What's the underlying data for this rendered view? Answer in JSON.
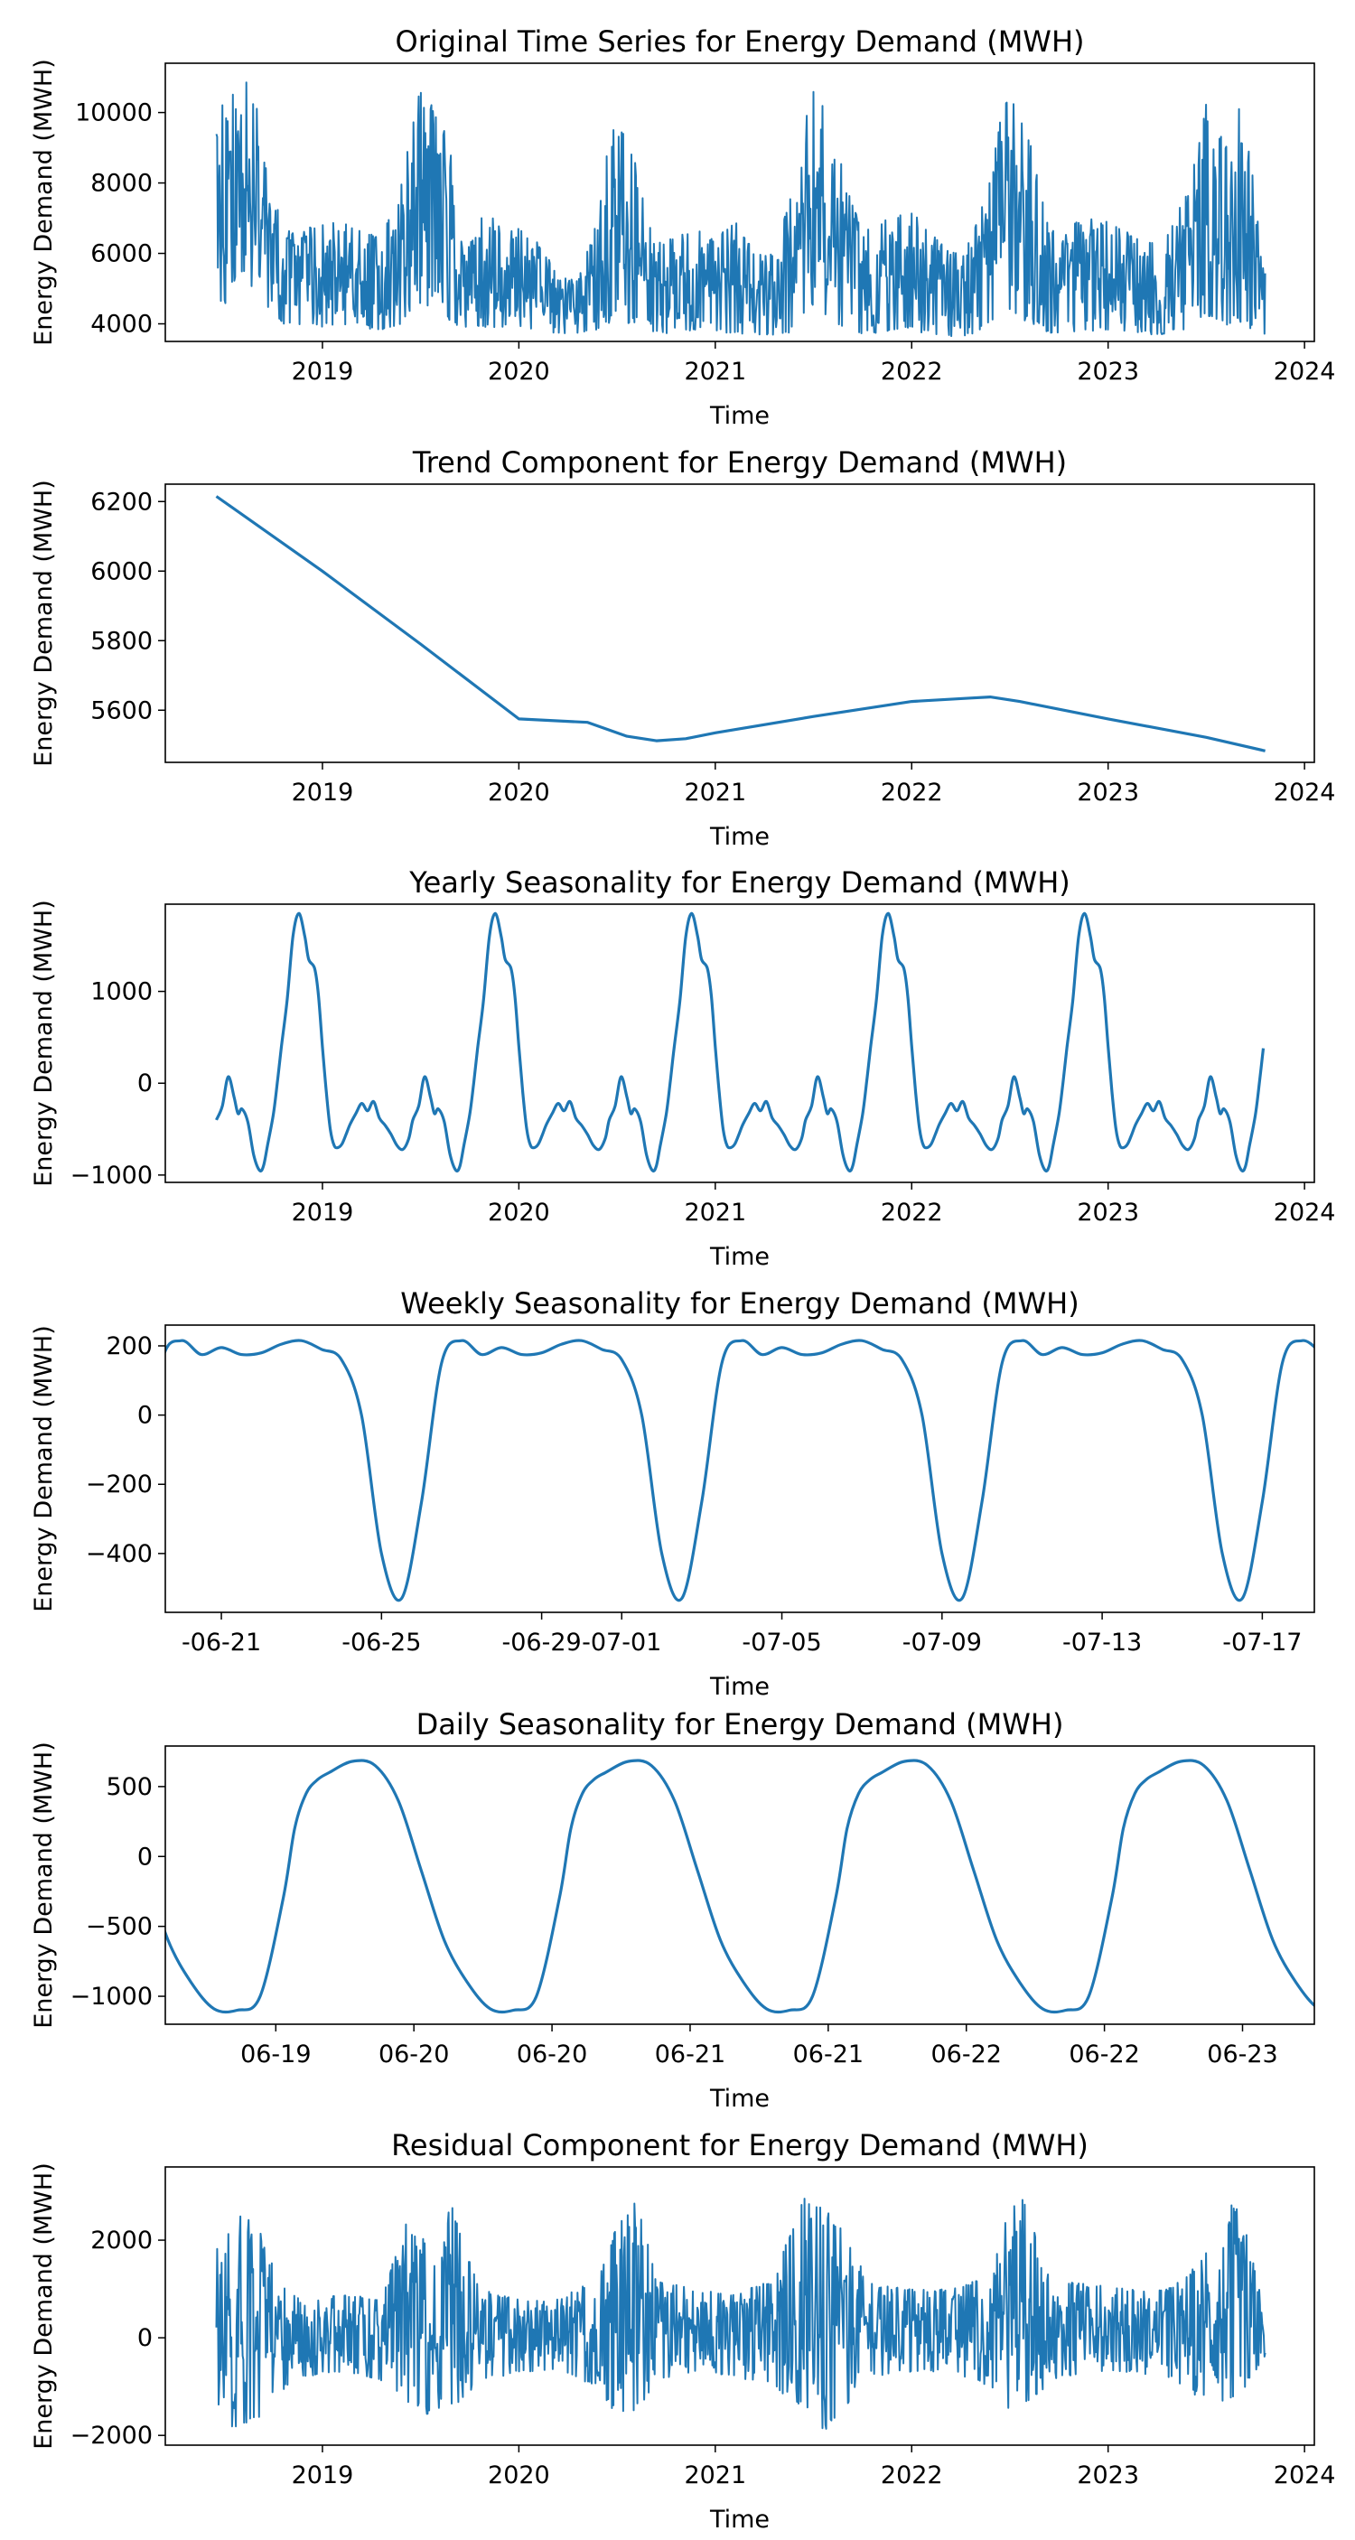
{
  "chart_data": [
    {
      "type": "line",
      "title": "Original Time Series for Energy Demand (MWH)",
      "xlabel": "Time",
      "ylabel": "Energy Demand (MWH)",
      "xlim": [
        2018.2,
        2024.05
      ],
      "ylim": [
        3500,
        11400
      ],
      "x_ticks": [
        2019,
        2020,
        2021,
        2022,
        2023,
        2024
      ],
      "x_tick_labels": [
        "2019",
        "2020",
        "2021",
        "2022",
        "2023",
        "2024"
      ],
      "y_ticks": [
        4000,
        6000,
        8000,
        10000
      ],
      "y_tick_labels": [
        "4000",
        "6000",
        "8000",
        "10000"
      ],
      "series_color": "#1f77b4",
      "x_range": [
        2018.46,
        2023.8
      ],
      "envelope": {
        "x": [
          2018.46,
          2018.5,
          2018.55,
          2018.6,
          2018.65,
          2018.7,
          2018.75,
          2018.8,
          2018.85,
          2018.9,
          2019.0,
          2019.1,
          2019.2,
          2019.3,
          2019.4,
          2019.45,
          2019.5,
          2019.55,
          2019.6,
          2019.65,
          2019.7,
          2019.75,
          2019.8,
          2019.85,
          2019.9,
          2020.0,
          2020.1,
          2020.2,
          2020.3,
          2020.4,
          2020.45,
          2020.5,
          2020.55,
          2020.6,
          2020.65,
          2020.7,
          2020.75,
          2020.8,
          2020.9,
          2021.0,
          2021.1,
          2021.2,
          2021.3,
          2021.4,
          2021.45,
          2021.5,
          2021.55,
          2021.6,
          2021.65,
          2021.7,
          2021.75,
          2021.8,
          2021.9,
          2022.0,
          2022.1,
          2022.2,
          2022.3,
          2022.4,
          2022.45,
          2022.5,
          2022.55,
          2022.6,
          2022.65,
          2022.7,
          2022.75,
          2022.8,
          2022.9,
          2023.0,
          2023.1,
          2023.2,
          2023.3,
          2023.4,
          2023.45,
          2023.5,
          2023.55,
          2023.6,
          2023.65,
          2023.7,
          2023.75,
          2023.8
        ],
        "upper": [
          9400,
          10500,
          10600,
          11000,
          10900,
          8800,
          7800,
          6800,
          6600,
          6700,
          6800,
          7000,
          6600,
          6500,
          8000,
          9500,
          10800,
          10300,
          9800,
          9000,
          7200,
          6700,
          7000,
          7200,
          6800,
          6700,
          6300,
          5400,
          5200,
          7000,
          8900,
          10200,
          9000,
          8700,
          7000,
          6400,
          6300,
          6600,
          6700,
          6400,
          7000,
          6000,
          6000,
          8000,
          9600,
          10600,
          10300,
          9500,
          8500,
          7400,
          6700,
          6800,
          7100,
          7200,
          6600,
          6000,
          6400,
          8200,
          9800,
          10800,
          9800,
          9300,
          8000,
          6600,
          6900,
          6800,
          7000,
          6900,
          6600,
          6300,
          6500,
          7800,
          8900,
          10300,
          9600,
          9100,
          10400,
          9500,
          7800,
          5700
        ],
        "lower": [
          4600,
          4500,
          5200,
          5300,
          5000,
          4200,
          4100,
          4000,
          4000,
          3900,
          3900,
          4000,
          3900,
          3800,
          4000,
          4200,
          4400,
          4300,
          4200,
          4100,
          3900,
          3900,
          3900,
          3900,
          3900,
          3900,
          3800,
          3700,
          3700,
          3800,
          3900,
          4200,
          4000,
          4000,
          3800,
          3700,
          3700,
          3800,
          3800,
          3800,
          3700,
          3700,
          3600,
          3800,
          4100,
          4400,
          4200,
          4100,
          3900,
          3800,
          3700,
          3700,
          3800,
          3800,
          3700,
          3600,
          3700,
          3900,
          4200,
          4400,
          4100,
          4000,
          3900,
          3700,
          3700,
          3700,
          3800,
          3800,
          3700,
          3700,
          3700,
          3800,
          4000,
          4300,
          4000,
          3900,
          4100,
          3900,
          3800,
          3700
        ]
      }
    },
    {
      "type": "line",
      "title": "Trend Component for Energy Demand (MWH)",
      "xlabel": "Time",
      "ylabel": "Energy Demand (MWH)",
      "xlim": [
        2018.2,
        2024.05
      ],
      "ylim": [
        5450,
        6250
      ],
      "x_ticks": [
        2019,
        2020,
        2021,
        2022,
        2023,
        2024
      ],
      "x_tick_labels": [
        "2019",
        "2020",
        "2021",
        "2022",
        "2023",
        "2024"
      ],
      "y_ticks": [
        5600,
        5800,
        6000,
        6200
      ],
      "y_tick_labels": [
        "5600",
        "5800",
        "6000",
        "6200"
      ],
      "series_color": "#1f77b4",
      "x": [
        2018.46,
        2019.0,
        2019.5,
        2020.0,
        2020.35,
        2020.55,
        2020.7,
        2020.85,
        2021.0,
        2021.5,
        2022.0,
        2022.3,
        2022.4,
        2022.55,
        2023.0,
        2023.5,
        2023.8
      ],
      "y": [
        6215,
        6000,
        5790,
        5575,
        5565,
        5525,
        5512,
        5518,
        5535,
        5582,
        5625,
        5635,
        5638,
        5625,
        5575,
        5522,
        5483
      ]
    },
    {
      "type": "line",
      "title": "Yearly Seasonality for Energy Demand (MWH)",
      "xlabel": "Time",
      "ylabel": "Energy Demand (MWH)",
      "xlim": [
        2018.2,
        2024.05
      ],
      "ylim": [
        -1080,
        1950
      ],
      "x_ticks": [
        2019,
        2020,
        2021,
        2022,
        2023,
        2024
      ],
      "x_tick_labels": [
        "2019",
        "2020",
        "2021",
        "2022",
        "2023",
        "2024"
      ],
      "y_ticks": [
        -1000,
        0,
        1000
      ],
      "y_tick_labels": [
        "−1000",
        "0",
        "1000"
      ],
      "series_color": "#1f77b4",
      "x_range": [
        2018.46,
        2023.8
      ],
      "one_year_profile": {
        "phase": [
          0.0,
          0.03,
          0.06,
          0.09,
          0.11,
          0.13,
          0.16,
          0.19,
          0.22,
          0.24,
          0.26,
          0.29,
          0.31,
          0.33,
          0.36,
          0.39,
          0.42,
          0.45,
          0.47,
          0.5,
          0.52,
          0.54,
          0.56,
          0.58,
          0.6,
          0.62,
          0.64,
          0.66,
          0.68,
          0.71,
          0.74,
          0.77,
          0.8,
          0.83,
          0.86,
          0.89,
          0.92,
          0.95,
          0.98,
          1.0
        ],
        "value": [
          -400,
          -250,
          70,
          -150,
          -330,
          -280,
          -420,
          -780,
          -950,
          -900,
          -680,
          -340,
          0,
          380,
          900,
          1600,
          1850,
          1600,
          1350,
          1250,
          950,
          400,
          -100,
          -500,
          -680,
          -700,
          -660,
          -560,
          -450,
          -330,
          -220,
          -300,
          -200,
          -380,
          -460,
          -560,
          -680,
          -720,
          -600,
          -400
        ]
      }
    },
    {
      "type": "line",
      "title": "Weekly Seasonality for Energy Demand (MWH)",
      "xlabel": "Time",
      "ylabel": "Energy Demand (MWH)",
      "xlim": [
        -1.4,
        27.3
      ],
      "ylim": [
        -570,
        260
      ],
      "x_ticks": [
        0,
        4,
        8,
        10,
        14,
        18,
        22,
        26
      ],
      "x_tick_labels": [
        "-06-21",
        "-06-25",
        "-06-29",
        "-07-01",
        "-07-05",
        "-07-09",
        "-07-13",
        "-07-17"
      ],
      "y_ticks": [
        -400,
        -200,
        0,
        200
      ],
      "y_tick_labels": [
        "−400",
        "−200",
        "0",
        "200"
      ],
      "series_color": "#1f77b4",
      "one_week_profile": {
        "day": [
          0,
          0.5,
          1,
          1.5,
          2,
          2.5,
          3,
          3.5,
          4,
          4.5,
          5,
          5.5,
          6,
          6.5,
          7
        ],
        "value": [
          195,
          175,
          180,
          205,
          215,
          190,
          160,
          0,
          -400,
          -530,
          -250,
          150,
          215,
          175,
          195
        ]
      },
      "x_start": -1.4,
      "x_end": 27.3
    },
    {
      "type": "line",
      "title": "Daily Seasonality for Energy Demand (MWH)",
      "xlabel": "Time",
      "ylabel": "Energy Demand (MWH)",
      "xlim": [
        0,
        20.8
      ],
      "ylim": [
        -1200,
        790
      ],
      "x_ticks": [
        2,
        4.5,
        7,
        9.5,
        12,
        14.5,
        17,
        19.5
      ],
      "x_tick_labels": [
        "06-19",
        "06-20",
        "06-20",
        "06-21",
        "06-21",
        "06-22",
        "06-22",
        "06-23"
      ],
      "y_ticks": [
        -1000,
        -500,
        0,
        500
      ],
      "y_tick_labels": [
        "−1000",
        "−500",
        "0",
        "500"
      ],
      "series_color": "#1f77b4",
      "one_day_profile": {
        "hour": [
          0,
          2,
          4,
          5,
          6,
          7,
          8,
          10,
          12,
          14,
          16,
          18,
          20,
          22,
          24
        ],
        "value": [
          -1100,
          -1000,
          -300,
          200,
          450,
          550,
          600,
          680,
          650,
          400,
          -100,
          -600,
          -900,
          -1090,
          -1100
        ]
      },
      "x_start": 0,
      "x_end": 20.8
    },
    {
      "type": "line",
      "title": "Residual Component for Energy Demand (MWH)",
      "xlabel": "Time",
      "ylabel": "Energy Demand (MWH)",
      "xlim": [
        2018.2,
        2024.05
      ],
      "ylim": [
        -2200,
        3500
      ],
      "x_ticks": [
        2019,
        2020,
        2021,
        2022,
        2023,
        2024
      ],
      "x_tick_labels": [
        "2019",
        "2020",
        "2021",
        "2022",
        "2023",
        "2024"
      ],
      "y_ticks": [
        -2000,
        0,
        2000
      ],
      "y_tick_labels": [
        "−2000",
        "0",
        "2000"
      ],
      "series_color": "#1f77b4",
      "x_range": [
        2018.46,
        2023.8
      ],
      "envelope": {
        "x": [
          2018.46,
          2018.55,
          2018.65,
          2018.75,
          2018.9,
          2019.1,
          2019.3,
          2019.45,
          2019.55,
          2019.65,
          2019.8,
          2020.0,
          2020.2,
          2020.4,
          2020.5,
          2020.6,
          2020.7,
          2020.9,
          2021.1,
          2021.3,
          2021.45,
          2021.55,
          2021.65,
          2021.8,
          2022.0,
          2022.2,
          2022.4,
          2022.5,
          2022.6,
          2022.7,
          2022.9,
          2023.1,
          2023.3,
          2023.45,
          2023.55,
          2023.65,
          2023.8
        ],
        "upper": [
          1900,
          2300,
          3200,
          1500,
          700,
          900,
          800,
          2700,
          1800,
          2800,
          1000,
          800,
          800,
          1200,
          2300,
          2900,
          1200,
          1000,
          900,
          1200,
          3000,
          2700,
          2200,
          1100,
          1000,
          1000,
          1300,
          2700,
          2900,
          1200,
          1100,
          1000,
          1000,
          1500,
          2000,
          3100,
          500
        ],
        "lower": [
          -1400,
          -1900,
          -1800,
          -1200,
          -800,
          -700,
          -900,
          -1400,
          -1600,
          -1500,
          -900,
          -700,
          -700,
          -1000,
          -1600,
          -1500,
          -900,
          -700,
          -800,
          -1000,
          -1500,
          -2000,
          -1600,
          -800,
          -700,
          -700,
          -1000,
          -1500,
          -1400,
          -900,
          -700,
          -700,
          -800,
          -1200,
          -1400,
          -1300,
          -400
        ]
      }
    }
  ]
}
